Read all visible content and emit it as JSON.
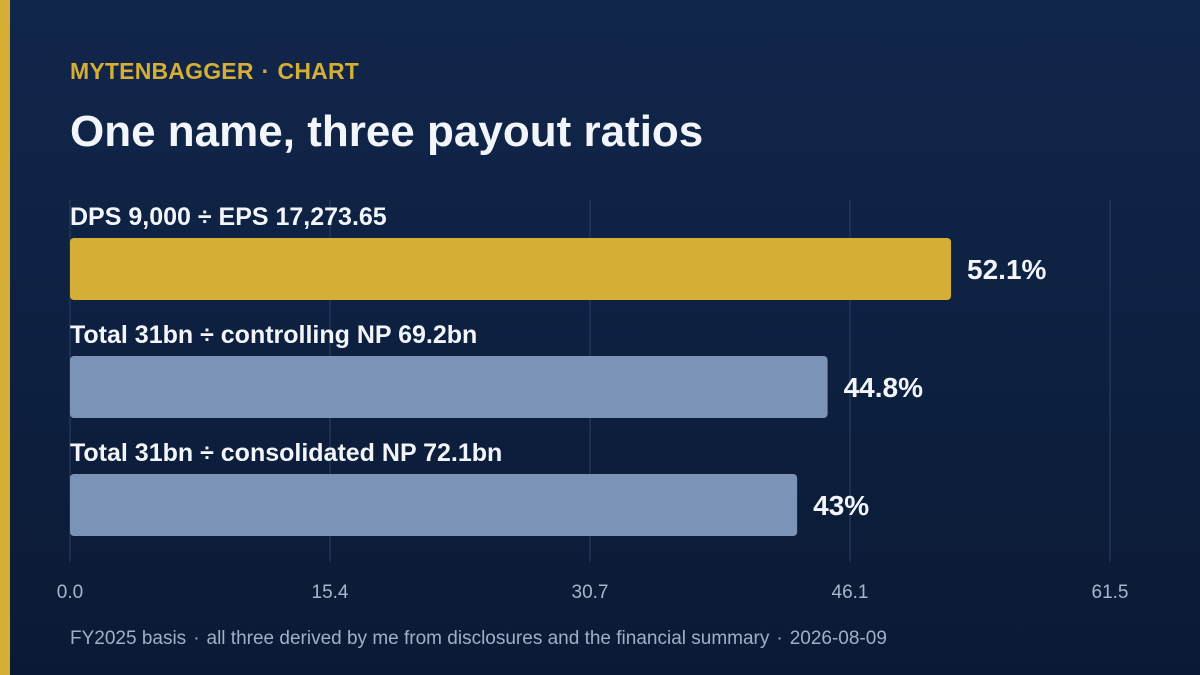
{
  "header": {
    "brand": "MYTENBAGGER",
    "section": "CHART",
    "title": "One name, three payout ratios"
  },
  "chart_data": {
    "type": "bar",
    "orientation": "horizontal",
    "categories": [
      "DPS 9,000 ÷ EPS 17,273.65",
      "Total 31bn ÷ controlling NP 69.2bn",
      "Total 31bn ÷ consolidated NP 72.1bn"
    ],
    "values": [
      52.1,
      44.8,
      43
    ],
    "value_labels": [
      "52.1%",
      "44.8%",
      "43%"
    ],
    "bar_colors": [
      "#d4ae35",
      "#7b93b6",
      "#7b93b6"
    ],
    "xlim": [
      0,
      61.5
    ],
    "x_ticks": [
      "0.0",
      "15.4",
      "30.7",
      "46.1",
      "61.5"
    ],
    "grid": true,
    "title": "",
    "xlabel": "",
    "ylabel": ""
  },
  "footer": {
    "basis": "FY2025 basis",
    "note": "all three derived by me from disclosures and the financial summary",
    "date": "2026-08-09"
  },
  "colors": {
    "accent": "#d4ae35",
    "bar_secondary": "#7b93b6",
    "gridline": "#2c4066",
    "tick_text": "#a7b6cc"
  }
}
